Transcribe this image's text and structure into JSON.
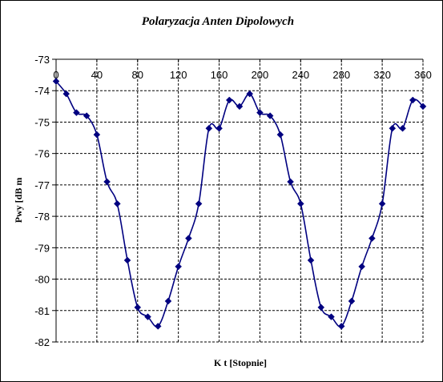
{
  "chart_data": {
    "type": "line",
    "title": "Polaryzacja Anten Dipolowych",
    "xlabel": "K t [Stopnie]",
    "ylabel": "Pwy [dB m",
    "x_ticks": [
      "0",
      "40",
      "80",
      "120",
      "160",
      "200",
      "240",
      "280",
      "320",
      "360"
    ],
    "y_ticks": [
      "-73",
      "-74",
      "-75",
      "-76",
      "-77",
      "-78",
      "-79",
      "-80",
      "-81",
      "-82"
    ],
    "xlim": [
      0,
      360
    ],
    "ylim": [
      -82,
      -73
    ],
    "grid": "dashed",
    "line_color": "#000080",
    "marker": "diamond",
    "series": [
      {
        "x": [
          0,
          10,
          20,
          30,
          40,
          50,
          60,
          70,
          80,
          90,
          100,
          110,
          120,
          130,
          140,
          150,
          160,
          170,
          180,
          190,
          200,
          210,
          220,
          230,
          240,
          250,
          260,
          270,
          280,
          290,
          300,
          310,
          320,
          330,
          340,
          350,
          360
        ],
        "values": [
          -73.7,
          -74.1,
          -74.7,
          -74.8,
          -75.4,
          -76.9,
          -77.6,
          -79.4,
          -80.9,
          -81.2,
          -81.5,
          -80.7,
          -79.6,
          -78.7,
          -77.6,
          -75.2,
          -75.2,
          -74.3,
          -74.5,
          -74.1,
          -74.7,
          -74.8,
          -75.4,
          -76.9,
          -77.6,
          -79.4,
          -80.9,
          -81.2,
          -81.5,
          -80.7,
          -79.6,
          -78.7,
          -77.6,
          -75.2,
          -75.2,
          -74.3,
          -74.5
        ]
      }
    ]
  }
}
